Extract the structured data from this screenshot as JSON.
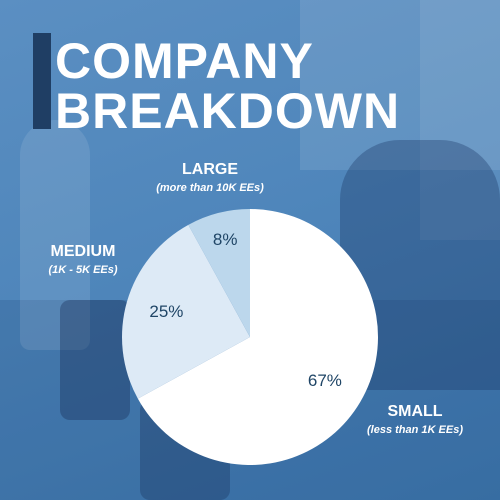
{
  "title_lines": [
    "COMPANY",
    "BREAKDOWN"
  ],
  "colors": {
    "background": "#4f86bb",
    "accent_bar": "#1f3e64",
    "slice_large": "#bcd7ec",
    "slice_medium": "#ddeaf6",
    "slice_small": "#ffffff",
    "percent_text": "#1f4566"
  },
  "chart_data": {
    "type": "pie",
    "title": "COMPANY BREAKDOWN",
    "start_angle_deg": 0,
    "direction": "clockwise",
    "slices": [
      {
        "id": "small",
        "category": "SMALL",
        "description": "(less than 1K EEs)",
        "value": 67,
        "label": "67%",
        "color": "#ffffff"
      },
      {
        "id": "medium",
        "category": "MEDIUM",
        "description": "(1K - 5K EEs)",
        "value": 25,
        "label": "25%",
        "color": "#ddeaf6"
      },
      {
        "id": "large",
        "category": "LARGE",
        "description": "(more than 10K EEs)",
        "value": 8,
        "label": "8%",
        "color": "#bcd7ec"
      }
    ]
  }
}
